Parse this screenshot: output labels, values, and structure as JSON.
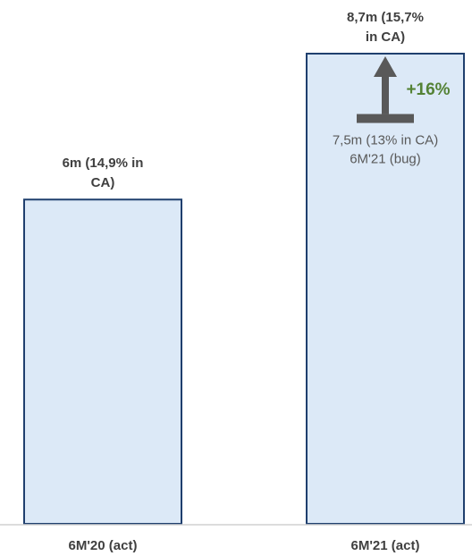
{
  "chart_data": {
    "type": "bar",
    "title": "",
    "xlabel": "",
    "ylabel": "",
    "categories": [
      "6M'20 (act)",
      "6M'21 (act)"
    ],
    "values": [
      6.0,
      8.7
    ],
    "ylim": [
      0,
      9.5
    ],
    "grid": false,
    "data_labels": [
      [
        "6m (14,9% in",
        "CA)"
      ],
      [
        "8,7m (15,7%",
        "in CA)"
      ]
    ],
    "reference": {
      "category_index": 1,
      "value": 7.5,
      "label_lines": [
        "7,5m (13% in CA)",
        "6M'21 (bug)"
      ],
      "delta_label": "+16%",
      "delta_color": "#548235"
    },
    "colors": {
      "bar_fill": "#dce9f7",
      "bar_stroke": "#1f3f6e",
      "marker": "#595959"
    }
  }
}
